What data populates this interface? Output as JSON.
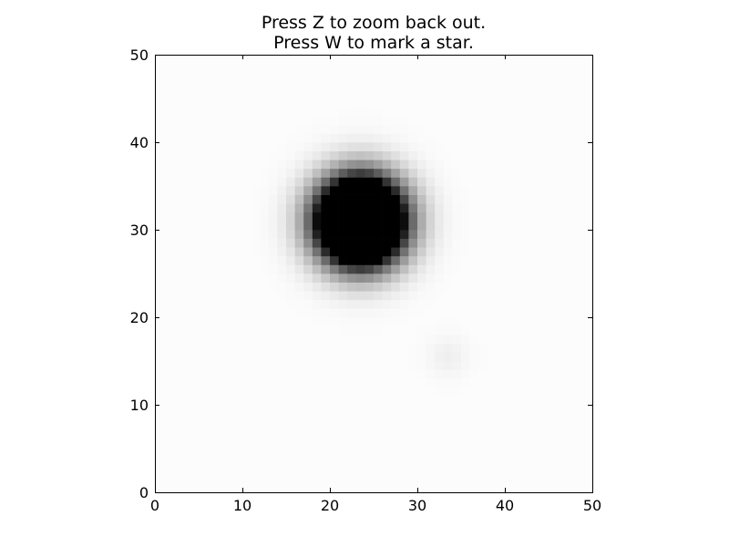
{
  "chart_data": {
    "type": "heatmap",
    "title_lines": [
      "Press Z to zoom back out.",
      "Press W to mark a star."
    ],
    "xlabel": "",
    "ylabel": "",
    "xlim": [
      0,
      50
    ],
    "ylim": [
      0,
      50
    ],
    "x_ticks": [
      0,
      10,
      20,
      30,
      40,
      50
    ],
    "y_ticks": [
      0,
      10,
      20,
      30,
      40,
      50
    ],
    "x_tick_labels": [
      "0",
      "10",
      "20",
      "30",
      "40",
      "50"
    ],
    "y_tick_labels": [
      "0",
      "10",
      "20",
      "30",
      "40",
      "50"
    ],
    "grid": false,
    "colormap": "gray_r",
    "background_level": 0.012,
    "sources": [
      {
        "name": "star",
        "center": [
          23.5,
          31.0
        ],
        "sigma": 3.3,
        "peak": 3.0
      },
      {
        "name": "faint-source",
        "center": [
          33.5,
          15.5
        ],
        "sigma": 1.6,
        "peak": 0.05
      }
    ]
  }
}
